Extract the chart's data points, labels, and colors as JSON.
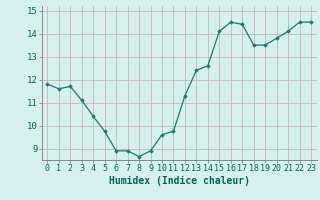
{
  "x": [
    0,
    1,
    2,
    3,
    4,
    5,
    6,
    7,
    8,
    9,
    10,
    11,
    12,
    13,
    14,
    15,
    16,
    17,
    18,
    19,
    20,
    21,
    22,
    23
  ],
  "y": [
    11.8,
    11.6,
    11.7,
    11.1,
    10.4,
    9.75,
    8.9,
    8.9,
    8.65,
    8.9,
    9.6,
    9.75,
    11.3,
    12.4,
    12.6,
    14.1,
    14.5,
    14.4,
    13.5,
    13.5,
    13.8,
    14.1,
    14.5,
    14.5
  ],
  "xlabel": "Humidex (Indice chaleur)",
  "ylim": [
    8.5,
    15.2
  ],
  "xlim": [
    -0.5,
    23.5
  ],
  "yticks": [
    9,
    10,
    11,
    12,
    13,
    14,
    15
  ],
  "xticks": [
    0,
    1,
    2,
    3,
    4,
    5,
    6,
    7,
    8,
    9,
    10,
    11,
    12,
    13,
    14,
    15,
    16,
    17,
    18,
    19,
    20,
    21,
    22,
    23
  ],
  "line_color": "#1a7a6e",
  "marker_color": "#1a7a6e",
  "bg_color": "#d6f0ee",
  "grid_color": "#c4a8a8",
  "axis_color": "#777777",
  "xlabel_fontsize": 7,
  "tick_fontsize": 6,
  "xlabel_color": "#006655",
  "tick_color": "#006655"
}
